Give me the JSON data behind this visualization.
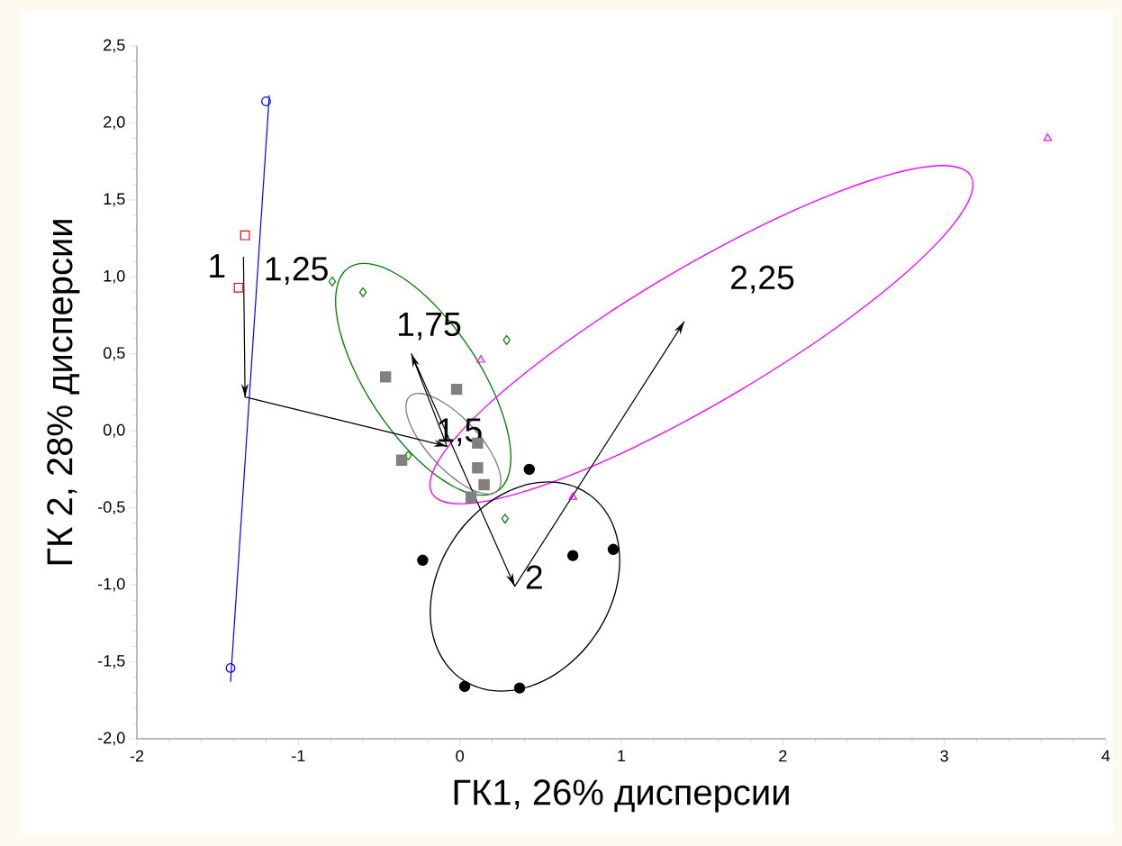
{
  "chart_data": {
    "type": "scatter",
    "xlabel": "ГК1, 26% дисперсии",
    "ylabel": "ГК 2, 28% дисперсии",
    "xlim": [
      -2,
      4
    ],
    "ylim": [
      -2,
      2.5
    ],
    "xticks": [
      -2,
      -1,
      0,
      1,
      2,
      3,
      4
    ],
    "yticks": [
      {
        "value": -2,
        "label": "-2,0"
      },
      {
        "value": -1.5,
        "label": "-1,5"
      },
      {
        "value": -1,
        "label": "-1,0"
      },
      {
        "value": -0.5,
        "label": "-0,5"
      },
      {
        "value": 0,
        "label": "0,0"
      },
      {
        "value": 0.5,
        "label": "0,5"
      },
      {
        "value": 1,
        "label": "1,0"
      },
      {
        "value": 1.5,
        "label": "1,5"
      },
      {
        "value": 2,
        "label": "2,0"
      },
      {
        "value": 2.5,
        "label": "2,5"
      }
    ],
    "grid": false,
    "legend": false,
    "series": [
      {
        "type": "line",
        "color": "#0000ff",
        "marker": "none",
        "line_style": "solid",
        "x": [
          -1.42,
          -1.18
        ],
        "values": [
          -1.63,
          2.18
        ]
      },
      {
        "color": "#0000ff",
        "marker": "circle",
        "x": [
          -1.2,
          -1.42
        ],
        "values": [
          2.14,
          -1.54
        ]
      },
      {
        "color": "#ff0000",
        "marker": "square",
        "x": [
          -1.33,
          -1.37
        ],
        "values": [
          1.27,
          0.93
        ]
      },
      {
        "color": "#008000",
        "marker": "diamond",
        "x": [
          -0.79,
          -0.6,
          0.29,
          0.28,
          -0.32
        ],
        "values": [
          0.97,
          0.9,
          0.59,
          -0.57,
          -0.16
        ]
      },
      {
        "color": "#808080",
        "marker": "square",
        "x": [
          -0.46,
          -0.02,
          -0.36,
          0.11,
          0.11,
          0.15,
          0.07
        ],
        "values": [
          0.35,
          0.27,
          -0.19,
          -0.08,
          -0.24,
          -0.35,
          -0.43
        ]
      },
      {
        "color": "#ff00ff",
        "marker": "triangle",
        "x": [
          3.64,
          0.13,
          0.7
        ],
        "values": [
          1.9,
          0.46,
          -0.43
        ]
      },
      {
        "color": "#000000",
        "marker": "circle",
        "x": [
          0.43,
          -0.23,
          0.7,
          0.95,
          0.03,
          0.37
        ],
        "values": [
          -0.25,
          -0.84,
          -0.81,
          -0.77,
          -1.66,
          -1.67
        ]
      },
      {
        "type": "line",
        "color": "#000000",
        "marker": "none",
        "line_style": "solid",
        "x": [
          -1.34,
          -1.33,
          -0.08,
          -0.3,
          0.34,
          1.39
        ],
        "values": [
          1.13,
          0.22,
          -0.1,
          0.5,
          -1.01,
          0.71
        ]
      }
    ],
    "annotations": [
      {
        "text": "1",
        "x": -1.34,
        "y": 1.13
      },
      {
        "text": "1,25",
        "x": -1.25,
        "y": 1.04
      },
      {
        "text": "1,5",
        "x": -0.08,
        "y": -0.1
      },
      {
        "text": "1,75",
        "x": -0.3,
        "y": 0.5
      },
      {
        "text": "2",
        "x": 0.34,
        "y": -1.01
      },
      {
        "text": "2,25",
        "x": 1.39,
        "y": 0.71
      }
    ]
  }
}
